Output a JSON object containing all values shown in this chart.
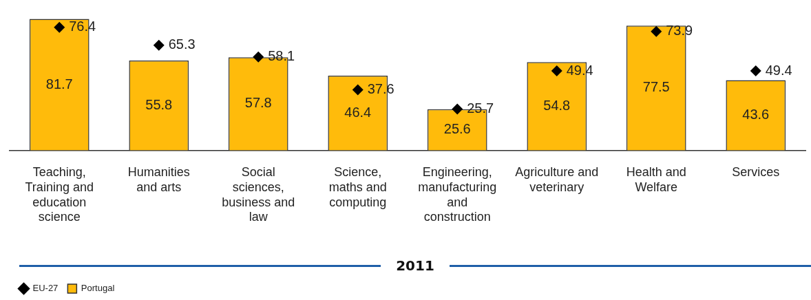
{
  "chart_data": {
    "type": "bar",
    "xlabel": "2011",
    "categories": [
      "Teaching, Training and education science",
      "Humanities and arts",
      "Social sciences, business and law",
      "Science, maths and computing",
      "Engineering, manufacturing and construction",
      "Agriculture and veterinary",
      "Health and Welfare",
      "Services"
    ],
    "series": [
      {
        "name": "EU-27",
        "type": "scatter",
        "color": "#000000",
        "values": [
          76.4,
          65.3,
          58.1,
          37.6,
          25.7,
          49.4,
          73.9,
          49.4
        ]
      },
      {
        "name": "Portugal",
        "color": "#ffbb0b",
        "values": [
          81.7,
          55.8,
          57.8,
          46.4,
          25.6,
          54.8,
          77.5,
          43.6
        ]
      }
    ],
    "tick_labels": "x",
    "data_labels": true,
    "legend": "bottom left",
    "marker": "diamond",
    "grid": false
  }
}
